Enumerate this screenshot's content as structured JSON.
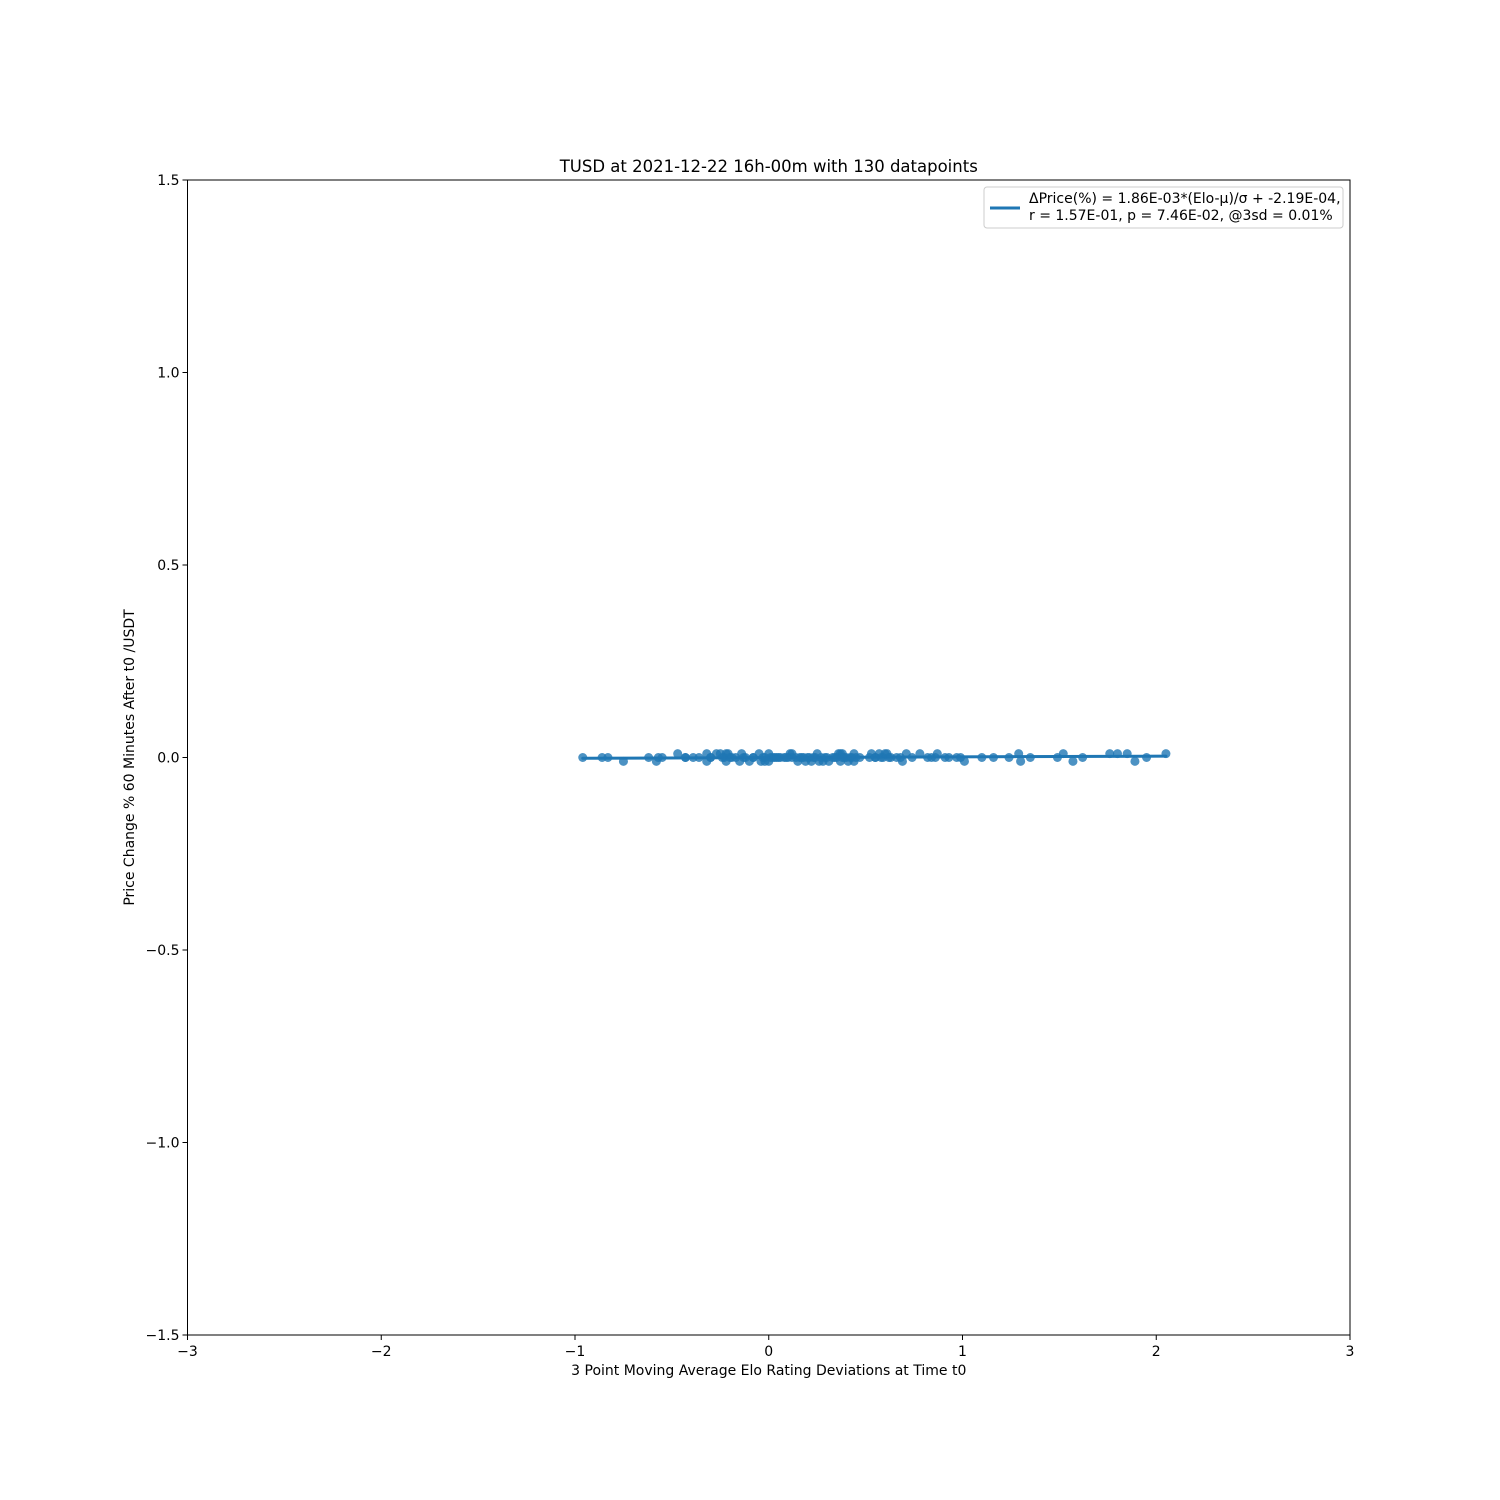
{
  "chart_data": {
    "type": "scatter",
    "title": "TUSD at 2021-12-22 16h-00m with 130 datapoints",
    "xlabel": "3 Point Moving Average Elo Rating Deviations at Time t0",
    "ylabel": "Price Change % 60 Minutes After t0 /USDT",
    "xlim": [
      -3,
      3
    ],
    "ylim": [
      -1.5,
      1.5
    ],
    "xticks": [
      -3,
      -2,
      -1,
      0,
      1,
      2,
      3
    ],
    "xtick_labels": [
      "−3",
      "−2",
      "−1",
      "0",
      "1",
      "2",
      "3"
    ],
    "yticks": [
      -1.5,
      -1.0,
      -0.5,
      0.0,
      0.5,
      1.0,
      1.5
    ],
    "ytick_labels": [
      "−1.5",
      "−1.0",
      "−0.5",
      "0.0",
      "0.5",
      "1.0",
      "1.5"
    ],
    "grid": false,
    "legend_position": "top-right",
    "legend": {
      "line1": "ΔPrice(%) = 1.86E-03*(Elo-μ)/σ + -2.19E-04,",
      "line2": "r = 1.57E-01, p = 7.46E-02, @3sd = 0.01%"
    },
    "colors": {
      "series": "#1f77b4"
    },
    "fit": {
      "slope": 0.00186,
      "intercept": -0.000219,
      "x_range": [
        -0.96,
        2.05
      ]
    },
    "series": [
      {
        "x": [
          -0.96,
          -0.86,
          -0.83,
          -0.75,
          -0.62,
          -0.58,
          -0.57,
          -0.47,
          -0.43,
          -0.39,
          -0.36,
          -0.32,
          -0.32,
          -0.3,
          -0.27,
          -0.25,
          -0.23,
          -0.22,
          -0.22,
          -0.21,
          -0.2,
          -0.17,
          -0.15,
          -0.14,
          -0.12,
          -0.1,
          -0.08,
          -0.05,
          -0.04,
          -0.03,
          -0.02,
          0.0,
          0.0,
          0.01,
          0.02,
          0.03,
          0.05,
          0.06,
          0.08,
          0.1,
          0.11,
          0.12,
          0.12,
          0.15,
          0.16,
          0.17,
          0.19,
          0.2,
          0.21,
          0.22,
          0.24,
          0.25,
          0.26,
          0.27,
          0.28,
          0.3,
          0.31,
          0.33,
          0.35,
          0.36,
          0.37,
          0.37,
          0.38,
          0.39,
          0.4,
          0.41,
          0.42,
          0.44,
          0.44,
          0.45,
          0.52,
          0.53,
          0.55,
          0.57,
          0.58,
          0.59,
          0.6,
          0.61,
          0.62,
          0.66,
          0.69,
          0.71,
          0.78,
          0.84,
          0.86,
          0.87,
          0.91,
          0.97,
          0.99,
          1.01,
          1.16,
          1.24,
          1.29,
          1.3,
          1.49,
          1.52,
          1.57,
          1.76,
          1.8,
          1.85,
          1.89,
          2.05,
          -0.55,
          -0.43,
          -0.3,
          -0.24,
          -0.19,
          -0.13,
          -0.08,
          -0.02,
          0.04,
          0.09,
          0.14,
          0.18,
          0.23,
          0.29,
          0.34,
          0.38,
          0.43,
          0.47,
          0.55,
          0.63,
          0.68,
          0.74,
          0.82,
          0.93,
          1.1,
          1.35,
          1.62,
          1.95
        ],
        "y": [
          0.0,
          0.0,
          0.0,
          -0.01,
          0.0,
          -0.01,
          0.0,
          0.01,
          0.0,
          0.0,
          0.0,
          0.01,
          -0.01,
          0.0,
          0.01,
          0.01,
          0.0,
          -0.01,
          0.01,
          0.01,
          0.0,
          0.0,
          -0.01,
          0.01,
          0.0,
          -0.01,
          0.0,
          0.01,
          -0.01,
          0.0,
          -0.01,
          0.01,
          -0.01,
          0.0,
          0.0,
          0.0,
          0.0,
          0.0,
          0.0,
          0.0,
          0.01,
          0.01,
          0.0,
          -0.01,
          0.0,
          0.0,
          -0.01,
          0.0,
          0.0,
          -0.01,
          0.0,
          0.01,
          -0.01,
          0.0,
          -0.01,
          0.0,
          -0.01,
          0.0,
          0.0,
          0.01,
          0.01,
          -0.01,
          0.01,
          0.0,
          0.0,
          -0.01,
          0.0,
          0.01,
          -0.01,
          0.0,
          0.0,
          0.01,
          0.0,
          0.01,
          0.0,
          0.0,
          0.01,
          0.01,
          0.0,
          0.0,
          -0.01,
          0.01,
          0.01,
          0.0,
          0.0,
          0.01,
          0.0,
          0.0,
          0.0,
          -0.01,
          0.0,
          0.0,
          0.01,
          -0.01,
          0.0,
          0.01,
          -0.01,
          0.01,
          0.01,
          0.01,
          -0.01,
          0.01,
          0.0,
          0.0,
          0.0,
          0.0,
          0.0,
          0.0,
          0.0,
          0.0,
          0.0,
          0.0,
          0.0,
          0.0,
          0.0,
          0.0,
          0.0,
          0.0,
          0.0,
          0.0,
          0.0,
          0.0,
          0.0,
          0.0,
          0.0,
          0.0,
          0.0,
          0.0,
          0.0,
          0.0
        ]
      }
    ]
  }
}
